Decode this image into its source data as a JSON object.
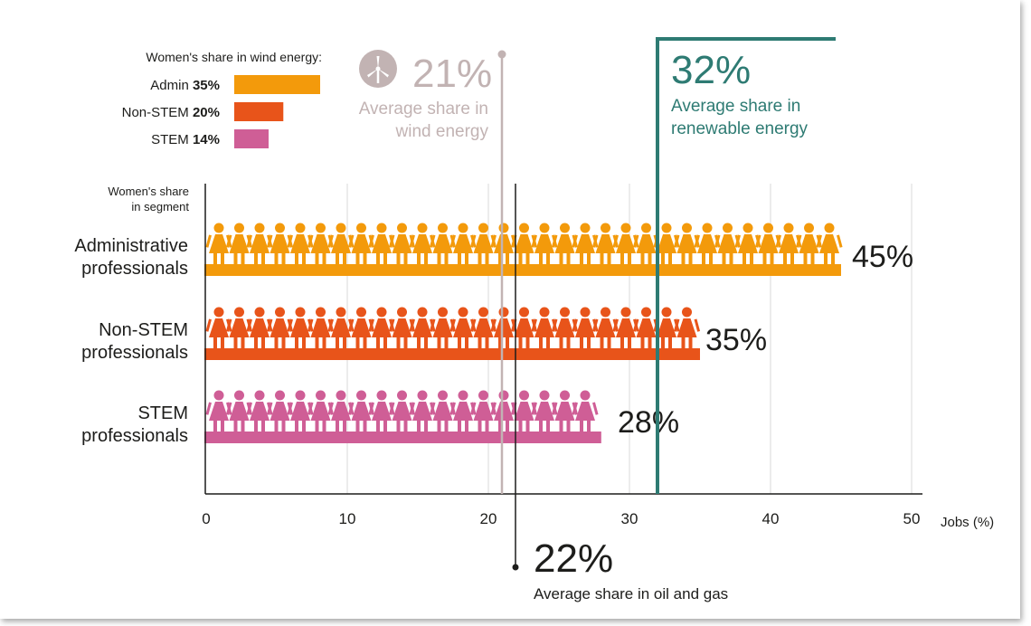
{
  "chart_data": {
    "type": "bar",
    "orientation": "horizontal",
    "categories": [
      "Administrative professionals",
      "Non-STEM professionals",
      "STEM professionals"
    ],
    "category_lines": [
      [
        "Administrative",
        "professionals"
      ],
      [
        "Non-STEM",
        "professionals"
      ],
      [
        "STEM",
        "professionals"
      ]
    ],
    "series": [
      {
        "values": [
          45,
          35,
          28
        ]
      }
    ],
    "value_labels": [
      "45%",
      "35%",
      "28%"
    ],
    "colors": [
      "#f39a0b",
      "#e8541a",
      "#cf5e96"
    ],
    "xlim": [
      0,
      50
    ],
    "xticks": [
      "0",
      "10",
      "20",
      "30",
      "40",
      "50"
    ],
    "xlabel": "Jobs (%)",
    "ylabel_lines": [
      "Women's share",
      "in segment"
    ],
    "grid": true,
    "reference_lines": [
      {
        "value": 21,
        "value_label": "21%",
        "text_lines": [
          "Average share in",
          "wind energy"
        ],
        "color": "#c2b3b3"
      },
      {
        "value": 22,
        "value_label": "22%",
        "text_lines": [
          "Average share in oil and gas"
        ],
        "color": "#1d1d1b"
      },
      {
        "value": 32,
        "value_label": "32%",
        "text_lines": [
          "Average share in",
          "renewable energy"
        ],
        "color": "#2e7b73"
      }
    ],
    "inset_legend": {
      "title": "Women's share in wind energy:",
      "items": [
        {
          "name": "Admin",
          "value": 35,
          "label": "35%",
          "color": "#f39a0b"
        },
        {
          "name": "Non-STEM",
          "value": 20,
          "label": "20%",
          "color": "#e8541a"
        },
        {
          "name": "STEM",
          "value": 14,
          "label": "14%",
          "color": "#cf5e96"
        }
      ]
    },
    "icons": {
      "person": "woman-figure-icon",
      "wind": "wind-turbine-icon"
    }
  }
}
